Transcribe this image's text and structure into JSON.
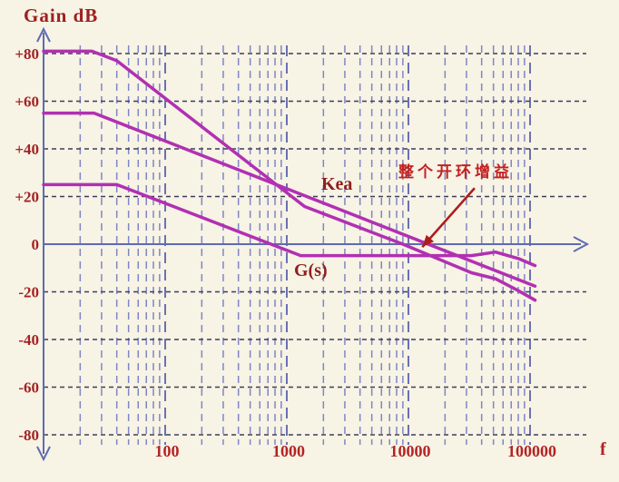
{
  "chart_data": {
    "type": "line",
    "title": "Gain dB",
    "xlabel": "f",
    "ylabel": "Gain dB",
    "x_scale": "log",
    "x_range": [
      10,
      200000
    ],
    "y_range": [
      -80,
      80
    ],
    "grid": true,
    "y_ticks": [
      {
        "label": "+80",
        "value": 80
      },
      {
        "label": "+60",
        "value": 60
      },
      {
        "label": "+40",
        "value": 40
      },
      {
        "label": "+20",
        "value": 20
      },
      {
        "label": "0",
        "value": 0
      },
      {
        "label": "-20",
        "value": -20
      },
      {
        "label": "-40",
        "value": -40
      },
      {
        "label": "-60",
        "value": -60
      },
      {
        "label": "-80",
        "value": -80
      }
    ],
    "x_ticks": [
      {
        "label": "100",
        "value": 100
      },
      {
        "label": "1000",
        "value": 1000
      },
      {
        "label": "10000",
        "value": 10000
      },
      {
        "label": "100000",
        "value": 100000
      }
    ],
    "series": [
      {
        "name": "open-loop-gain",
        "label": "整个开环增益",
        "points": [
          [
            10,
            81
          ],
          [
            25,
            81
          ],
          [
            40,
            77
          ],
          [
            1400,
            15.8
          ],
          [
            9000,
            0
          ],
          [
            33000,
            -12
          ],
          [
            52000,
            -14.5
          ],
          [
            80000,
            -19.5
          ],
          [
            110000,
            -23.5
          ]
        ]
      },
      {
        "name": "Kea",
        "label": "Kea",
        "points": [
          [
            10,
            55
          ],
          [
            26,
            55
          ],
          [
            110000,
            -17.6
          ]
        ]
      },
      {
        "name": "Gs",
        "label": "G(s)",
        "points": [
          [
            10,
            25
          ],
          [
            40,
            25
          ],
          [
            1300,
            -4.8
          ],
          [
            33000,
            -4.8
          ],
          [
            52000,
            -3.3
          ],
          [
            80000,
            -6
          ],
          [
            110000,
            -9
          ]
        ]
      }
    ],
    "annotation": {
      "text": "整个开环增益",
      "arrow_from_f": 35000,
      "arrow_from_db": 23.5,
      "arrow_to_f": 13000,
      "arrow_to_db": -1.2
    },
    "colors": {
      "background": "#f7f3e5",
      "curve": "#b130b2",
      "axis": "#5f6ab2",
      "grid_vertical": "#8086c4",
      "grid_major": "#5b63ad",
      "grid_horizontal": "#3d3d5c",
      "tick_label": "#a32222",
      "curve_label": "#8e1f1f",
      "annotation_arrow": "#ad1d1d",
      "annotation_text": "#c32020"
    }
  }
}
